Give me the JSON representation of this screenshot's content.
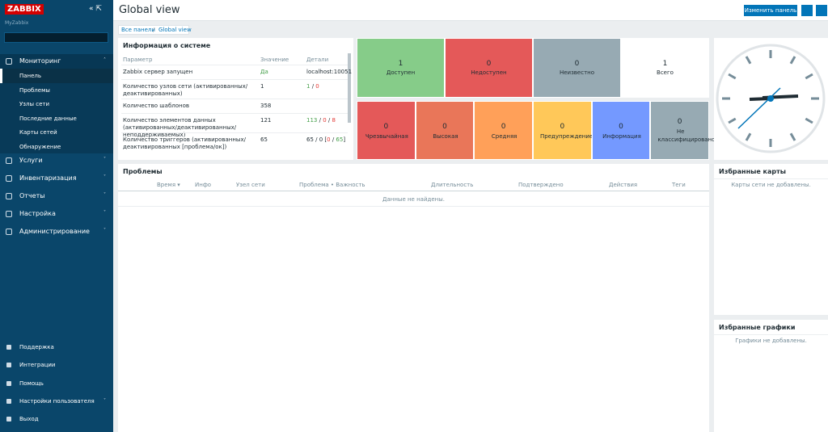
{
  "sidebar": {
    "logo": "ZABBIX",
    "server": "MyZabbix",
    "menu": [
      {
        "label": "Мониторинг",
        "items": [
          "Панель",
          "Проблемы",
          "Узлы сети",
          "Последние данные",
          "Карты сетей",
          "Обнаружение"
        ]
      },
      {
        "label": "Услуги"
      },
      {
        "label": "Инвентаризация"
      },
      {
        "label": "Отчеты"
      },
      {
        "label": "Настройка"
      },
      {
        "label": "Администрирование"
      }
    ],
    "footer": [
      "Поддержка",
      "Интеграции",
      "Помощь",
      "Настройки пользователя",
      "Выход"
    ]
  },
  "header": {
    "title": "Global view",
    "edit_button": "Изменить панель",
    "breadcrumbs": [
      "Все панели",
      "Global view"
    ]
  },
  "system_info": {
    "title": "Информация о системе",
    "columns": [
      "Параметр",
      "Значение",
      "Детали"
    ],
    "rows": [
      {
        "parameter": "Zabbix сервер запущен",
        "value": "Да",
        "value_tone": "ok",
        "details": [
          {
            "text": "localhost:10051",
            "tone": "plain"
          }
        ]
      },
      {
        "parameter": "Количество узлов сети (активированных/деактивированных)",
        "value": 1,
        "value_tone": "plain",
        "details": [
          {
            "text": "1",
            "tone": "ok"
          },
          {
            "text": " / ",
            "tone": "plain"
          },
          {
            "text": "0",
            "tone": "bad"
          }
        ]
      },
      {
        "parameter": "Количество шаблонов",
        "value": 358,
        "value_tone": "plain",
        "details": []
      },
      {
        "parameter": "Количество элементов данных (активированных/деактивированных/неподдерживаемых)",
        "value": 121,
        "value_tone": "plain",
        "details": [
          {
            "text": "113",
            "tone": "ok"
          },
          {
            "text": " / ",
            "tone": "plain"
          },
          {
            "text": "0",
            "tone": "bad"
          },
          {
            "text": " / ",
            "tone": "plain"
          },
          {
            "text": "8",
            "tone": "bad"
          }
        ]
      },
      {
        "parameter": "Количество триггеров (активированных/деактивированных [проблема/ок])",
        "value": 65,
        "value_tone": "plain",
        "details": [
          {
            "text": "65 / 0 [",
            "tone": "plain"
          },
          {
            "text": "0",
            "tone": "bad"
          },
          {
            "text": " / ",
            "tone": "plain"
          },
          {
            "text": "65",
            "tone": "ok"
          },
          {
            "text": "]",
            "tone": "plain"
          }
        ]
      }
    ]
  },
  "host_availability": {
    "items": [
      {
        "count": 1,
        "label": "Доступен",
        "color": "#86cc89"
      },
      {
        "count": 0,
        "label": "Недоступен",
        "color": "#e45959"
      },
      {
        "count": 0,
        "label": "Неизвестно",
        "color": "#97aab3"
      },
      {
        "count": 1,
        "label": "Всего",
        "color": "#ffffff"
      }
    ]
  },
  "problems_by_severity": {
    "items": [
      {
        "count": 0,
        "label": "Чрезвычайная",
        "color": "#e45959"
      },
      {
        "count": 0,
        "label": "Высокая",
        "color": "#e97659"
      },
      {
        "count": 0,
        "label": "Средняя",
        "color": "#ffa059"
      },
      {
        "count": 0,
        "label": "Предупреждение",
        "color": "#ffc859"
      },
      {
        "count": 0,
        "label": "Информация",
        "color": "#7499ff"
      },
      {
        "count": 0,
        "label": "Не классифицировано",
        "color": "#97aab3"
      }
    ]
  },
  "problems": {
    "title": "Проблемы",
    "columns": [
      "Время ▾",
      "Инфо",
      "Узел сети",
      "Проблема • Важность",
      "Длительность",
      "Подтверждено",
      "Действия",
      "Теги"
    ],
    "empty": "Данные не найдены."
  },
  "favorite_maps": {
    "title": "Избранные карты",
    "empty": "Карты сети не добавлены."
  },
  "favorite_graphs": {
    "title": "Избранные графики",
    "empty": "Графики не добавлены."
  }
}
